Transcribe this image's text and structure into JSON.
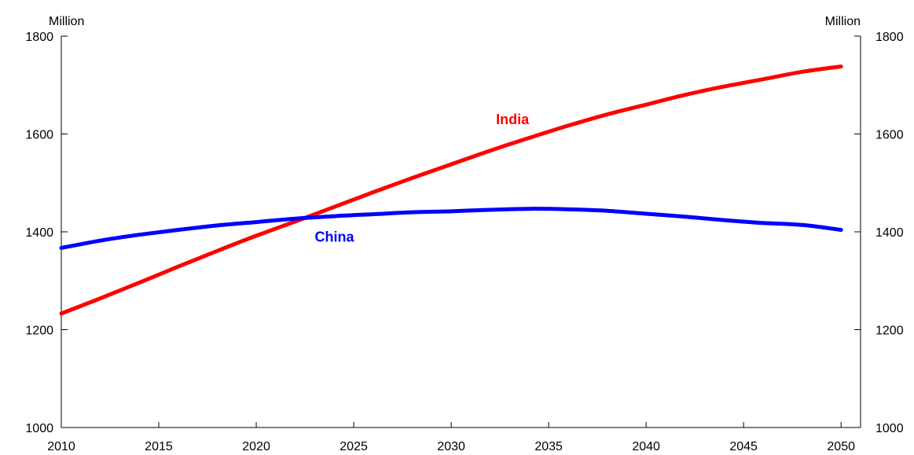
{
  "chart_data": {
    "type": "line",
    "y_unit_left": "Million",
    "y_unit_right": "Million",
    "xlim": [
      2010,
      2051
    ],
    "ylim": [
      1000,
      1800
    ],
    "x_ticks": [
      2010,
      2015,
      2020,
      2025,
      2030,
      2035,
      2040,
      2045,
      2050
    ],
    "y_ticks": [
      1000,
      1200,
      1400,
      1600,
      1800
    ],
    "grid": false,
    "series": [
      {
        "name": "India",
        "color": "#ff0000",
        "label_at": [
          2032.3,
          1620
        ],
        "x": [
          2010,
          2012,
          2014,
          2016,
          2018,
          2020,
          2022,
          2024,
          2026,
          2028,
          2030,
          2032,
          2034,
          2036,
          2038,
          2040,
          2042,
          2044,
          2046,
          2048,
          2050
        ],
        "y": [
          1233,
          1264,
          1296,
          1329,
          1361,
          1392,
          1421,
          1451,
          1481,
          1510,
          1538,
          1566,
          1592,
          1617,
          1640,
          1660,
          1680,
          1697,
          1712,
          1727,
          1738
        ]
      },
      {
        "name": "China",
        "color": "#0000ff",
        "label_at": [
          2023.0,
          1380
        ],
        "x": [
          2010,
          2012,
          2014,
          2016,
          2018,
          2020,
          2022,
          2024,
          2026,
          2028,
          2030,
          2032,
          2034,
          2036,
          2038,
          2040,
          2042,
          2044,
          2046,
          2048,
          2050
        ],
        "y": [
          1367,
          1382,
          1394,
          1404,
          1413,
          1420,
          1427,
          1432,
          1436,
          1440,
          1442,
          1445,
          1447,
          1446,
          1443,
          1437,
          1431,
          1424,
          1418,
          1414,
          1404
        ]
      }
    ]
  }
}
